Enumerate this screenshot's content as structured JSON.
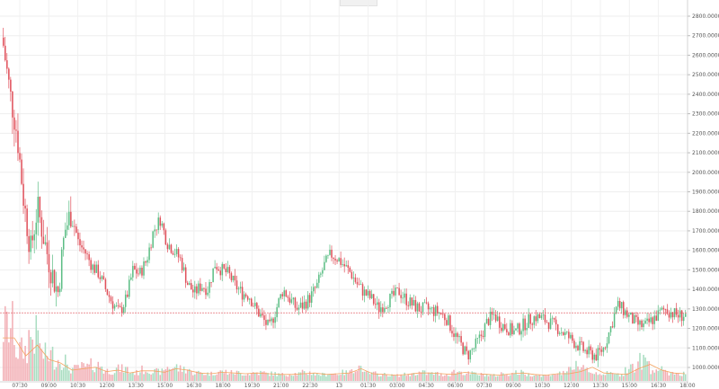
{
  "chart_data": {
    "type": "candlestick",
    "title": "",
    "xlabel": "",
    "ylabel": "",
    "grid": true,
    "ylim": [
      950,
      2900
    ],
    "y_ticks": [
      1000,
      1100,
      1200,
      1300,
      1400,
      1500,
      1600,
      1700,
      1800,
      1900,
      2000,
      2100,
      2200,
      2300,
      2400,
      2500,
      2600,
      2700,
      2800
    ],
    "y_tick_labels": [
      "1000.00000",
      "1100.00000",
      "1200.00000",
      "1300.00000",
      "1400.00000",
      "1500.00000",
      "1600.00000",
      "1700.00000",
      "1800.00000",
      "1900.00000",
      "2000.00000",
      "2100.00000",
      "2200.00000",
      "2300.00000",
      "2400.00000",
      "2500.00000",
      "2600.00000",
      "2700.00000",
      "2800.00000"
    ],
    "x_tick_labels": [
      "07:30",
      "09:00",
      "10:30",
      "12:00",
      "13:30",
      "15:00",
      "16:30",
      "18:00",
      "19:30",
      "21:00",
      "22:30",
      "13",
      "01:30",
      "03:00",
      "04:30",
      "06:00",
      "07:30",
      "09:00",
      "10:30",
      "12:00",
      "13:30",
      "15:00",
      "16:30",
      "18:00"
    ],
    "reference_line": 1280,
    "close_path": [
      2650,
      2400,
      2200,
      1850,
      1600,
      1820,
      1650,
      1500,
      1380,
      1700,
      1800,
      1640,
      1590,
      1520,
      1480,
      1400,
      1330,
      1280,
      1350,
      1500,
      1480,
      1550,
      1700,
      1760,
      1640,
      1600,
      1550,
      1430,
      1380,
      1420,
      1400,
      1530,
      1500,
      1480,
      1420,
      1380,
      1370,
      1300,
      1250,
      1200,
      1300,
      1400,
      1350,
      1300,
      1320,
      1360,
      1420,
      1520,
      1580,
      1560,
      1520,
      1480,
      1420,
      1380,
      1350,
      1300,
      1330,
      1360,
      1390,
      1350,
      1320,
      1300,
      1300,
      1290,
      1280,
      1250,
      1180,
      1120,
      1060,
      1100,
      1160,
      1240,
      1270,
      1220,
      1200,
      1180,
      1210,
      1240,
      1260,
      1250,
      1230,
      1210,
      1180,
      1150,
      1120,
      1090,
      1070,
      1060,
      1100,
      1200,
      1320,
      1290,
      1250,
      1220,
      1210,
      1240,
      1270,
      1300,
      1280,
      1265,
      1270
    ],
    "volume_profile": [
      0.55,
      0.3,
      0.45,
      0.25,
      0.2,
      0.1,
      0.12,
      0.14,
      0.08,
      0.1,
      0.06,
      0.09,
      0.07,
      0.12,
      0.1,
      0.06,
      0.05,
      0.07,
      0.06,
      0.05,
      0.06,
      0.05,
      0.04,
      0.05,
      0.06,
      0.04,
      0.05,
      0.06,
      0.12,
      0.05,
      0.04,
      0.03,
      0.04,
      0.06,
      0.05,
      0.04,
      0.07,
      0.05,
      0.04,
      0.03,
      0.05,
      0.06,
      0.04,
      0.03,
      0.05,
      0.08,
      0.14,
      0.06,
      0.05,
      0.04,
      0.12,
      0.18,
      0.1,
      0.06,
      0.05
    ]
  }
}
